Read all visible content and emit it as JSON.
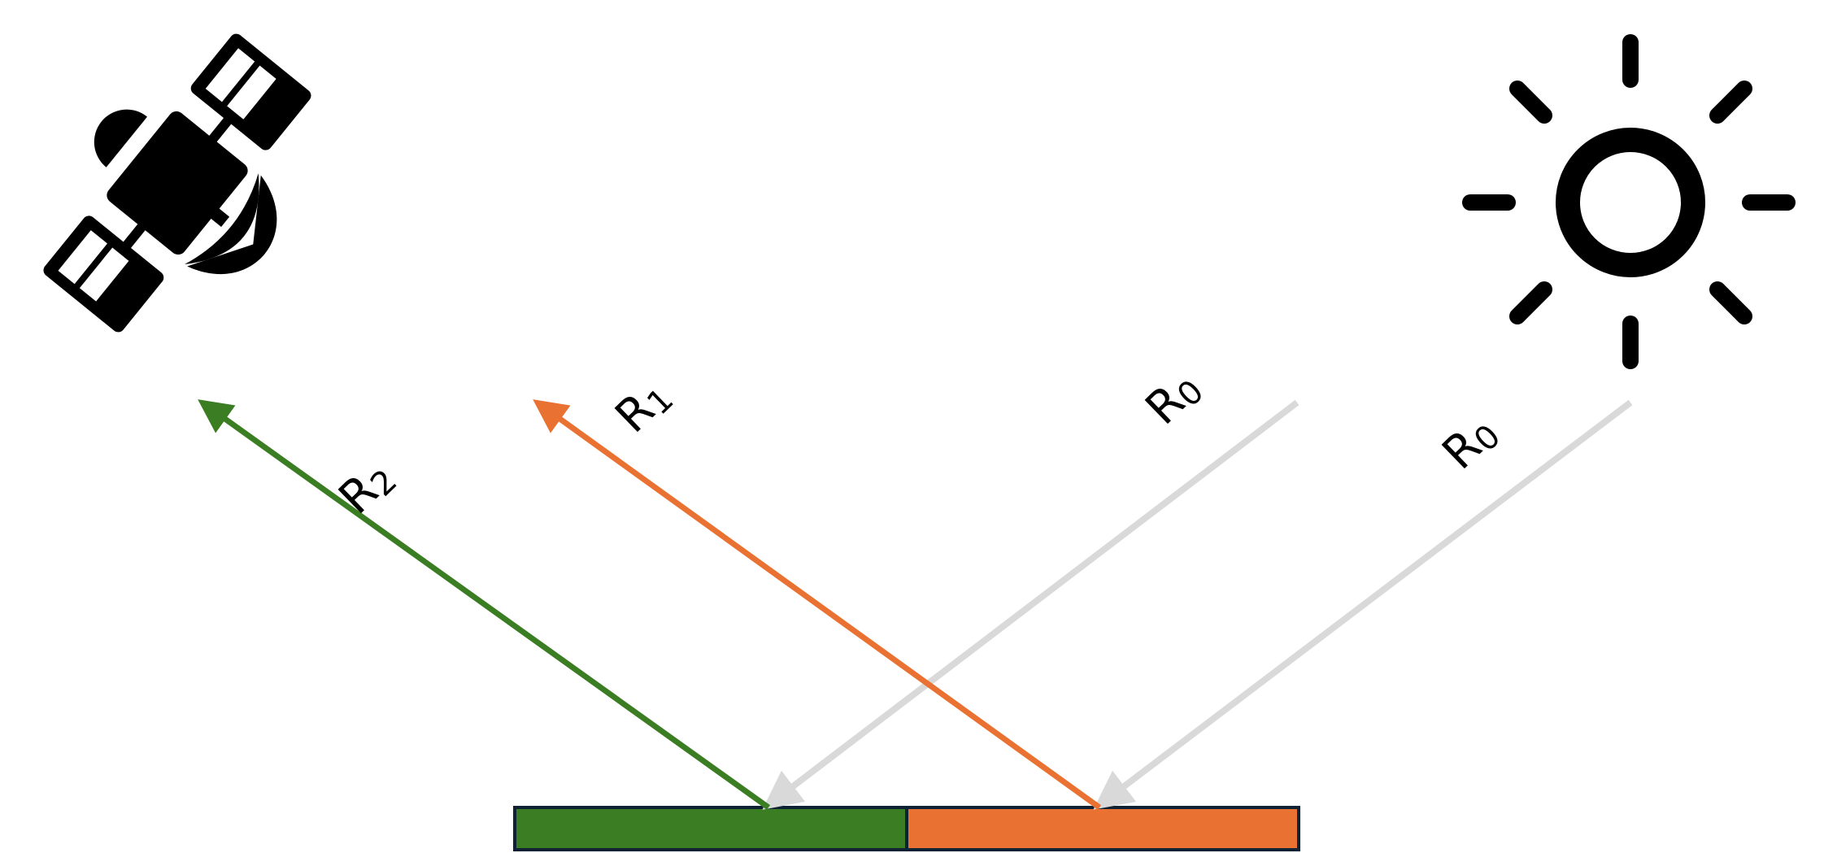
{
  "labels": {
    "r2": {
      "base": "R",
      "sub": "2"
    },
    "r1": {
      "base": "R",
      "sub": "1"
    },
    "r0_near": {
      "base": "R",
      "sub": "0"
    },
    "r0_far": {
      "base": "R",
      "sub": "0"
    }
  },
  "colors": {
    "green": "#3b7d23",
    "orange": "#e97132",
    "incident_gray": "#d9d9d9",
    "surface_border": "#0e2233",
    "icon": "#000000"
  },
  "icons": {
    "satellite": "satellite-icon",
    "sun": "sun-icon"
  }
}
